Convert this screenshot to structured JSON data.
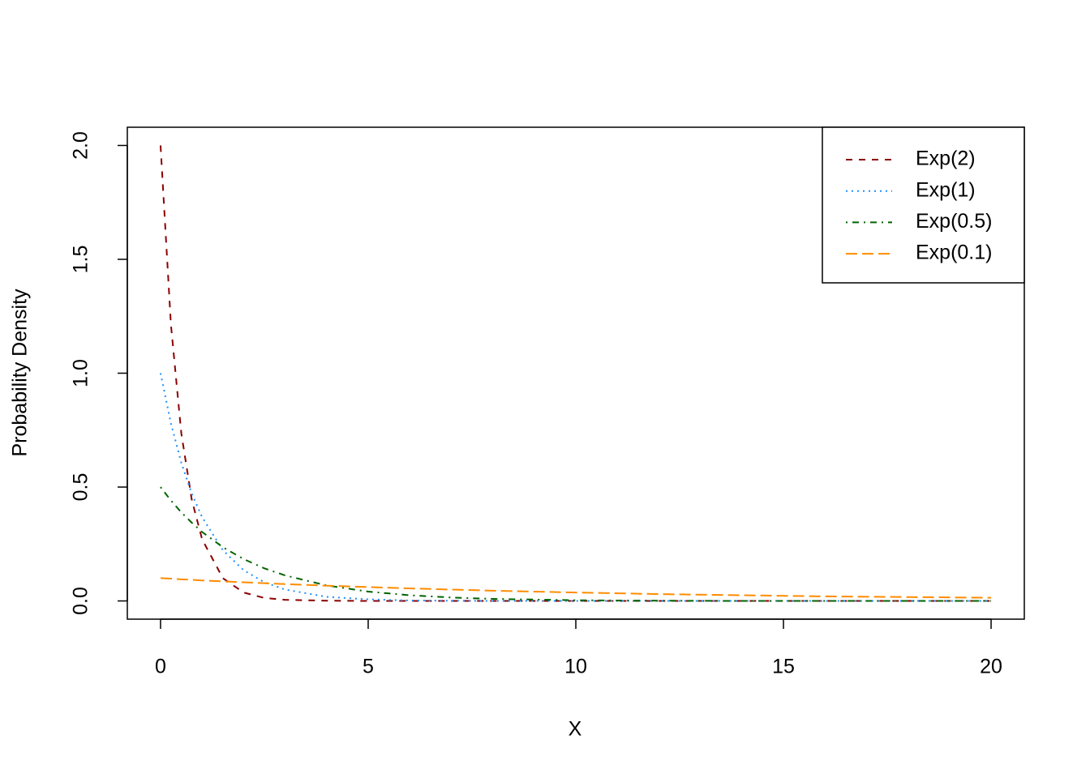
{
  "chart_data": {
    "type": "line",
    "xlabel": "X",
    "ylabel": "Probability Density",
    "x": [
      0,
      0.25,
      0.5,
      0.75,
      1,
      1.5,
      2,
      2.5,
      3,
      4,
      5,
      6,
      7,
      8,
      10,
      12,
      14,
      16,
      18,
      20
    ],
    "series": [
      {
        "name": "Exp(2)",
        "color": "#8B0000",
        "linestyle": "dashed",
        "values": [
          2,
          1.213,
          0.736,
          0.446,
          0.271,
          0.1,
          0.037,
          0.013,
          0.005,
          0.001,
          0,
          0,
          0,
          0,
          0,
          0,
          0,
          0,
          0,
          0
        ]
      },
      {
        "name": "Exp(1)",
        "color": "#1E90FF",
        "linestyle": "dotted",
        "values": [
          1,
          0.779,
          0.607,
          0.472,
          0.368,
          0.223,
          0.135,
          0.082,
          0.05,
          0.018,
          0.007,
          0.002,
          0.001,
          0,
          0,
          0,
          0,
          0,
          0,
          0
        ]
      },
      {
        "name": "Exp(0.5)",
        "color": "#006400",
        "linestyle": "dotdash",
        "values": [
          0.5,
          0.441,
          0.389,
          0.344,
          0.303,
          0.236,
          0.184,
          0.143,
          0.112,
          0.068,
          0.041,
          0.025,
          0.015,
          0.009,
          0.003,
          0.001,
          0,
          0,
          0,
          0
        ]
      },
      {
        "name": "Exp(0.1)",
        "color": "#FF8C00",
        "linestyle": "longdash",
        "values": [
          0.1,
          0.098,
          0.095,
          0.093,
          0.09,
          0.086,
          0.082,
          0.078,
          0.074,
          0.067,
          0.061,
          0.055,
          0.05,
          0.045,
          0.037,
          0.03,
          0.025,
          0.02,
          0.017,
          0.014
        ]
      }
    ],
    "xlim": [
      -0.8,
      20.8
    ],
    "ylim": [
      -0.08,
      2.08
    ],
    "xticks": [
      0,
      5,
      10,
      15,
      20
    ],
    "yticks": [
      {
        "value": 0,
        "label": "0.0"
      },
      {
        "value": 0.5,
        "label": "0.5"
      },
      {
        "value": 1,
        "label": "1.0"
      },
      {
        "value": 1.5,
        "label": "1.5"
      },
      {
        "value": 2,
        "label": "2.0"
      }
    ],
    "legend": "top-right"
  }
}
